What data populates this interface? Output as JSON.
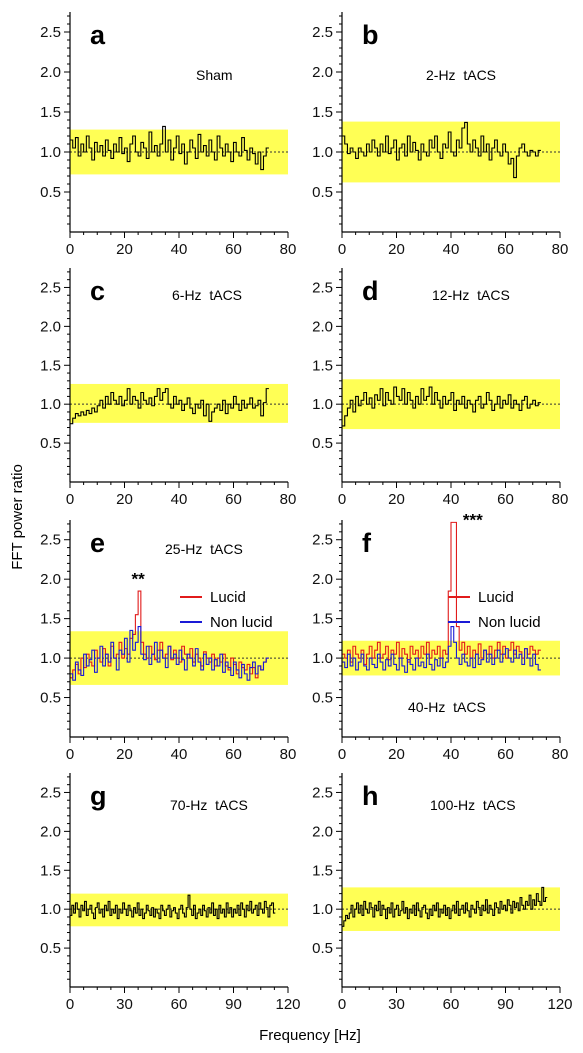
{
  "chart_data": [
    {
      "panel": "a",
      "type": "line",
      "condition_label": "Sham",
      "x_range": [
        0,
        80
      ],
      "y_range": [
        0,
        2.75
      ],
      "xticks": [
        0,
        20,
        40,
        60,
        80
      ],
      "yticks": [
        0.5,
        1.0,
        1.5,
        2.0,
        2.5
      ],
      "band": [
        0.72,
        1.28
      ],
      "series": [
        {
          "color": "#000000",
          "x_max": 73,
          "values": [
            1.15,
            1.05,
            1.18,
            0.95,
            1.1,
            1.0,
            1.2,
            1.05,
            0.9,
            1.12,
            1.0,
            1.08,
            0.95,
            1.15,
            1.02,
            0.92,
            1.1,
            1.0,
            1.18,
            0.98,
            1.05,
            0.88,
            1.1,
            1.2,
            1.0,
            0.95,
            1.12,
            1.05,
            0.92,
            1.25,
            1.0,
            1.08,
            0.95,
            1.1,
            1.32,
            1.0,
            1.15,
            0.9,
            1.05,
            1.2,
            0.98,
            1.1,
            0.85,
            1.0,
            1.15,
            1.05,
            0.92,
            1.22,
            1.0,
            1.08,
            0.95,
            1.15,
            1.0,
            0.9,
            1.2,
            1.05,
            0.95,
            1.1,
            1.0,
            0.88,
            1.12,
            1.0,
            0.95,
            1.18,
            1.02,
            0.9,
            1.05,
            0.98,
            0.85,
            1.0,
            0.78,
            0.95,
            1.05
          ]
        }
      ]
    },
    {
      "panel": "b",
      "type": "line",
      "condition_label": "2-Hz  tACS",
      "x_range": [
        0,
        80
      ],
      "y_range": [
        0,
        2.75
      ],
      "xticks": [
        0,
        20,
        40,
        60,
        80
      ],
      "yticks": [
        0.5,
        1.0,
        1.5,
        2.0,
        2.5
      ],
      "band": [
        0.62,
        1.38
      ],
      "series": [
        {
          "color": "#000000",
          "x_max": 73,
          "values": [
            1.2,
            1.1,
            0.98,
            1.05,
            1.0,
            0.92,
            1.05,
            1.0,
            0.95,
            1.1,
            1.0,
            1.15,
            1.05,
            0.95,
            1.1,
            1.0,
            1.2,
            0.98,
            1.05,
            1.15,
            0.9,
            1.05,
            1.1,
            0.95,
            1.2,
            1.0,
            1.12,
            1.02,
            0.9,
            1.1,
            1.0,
            0.95,
            1.15,
            1.05,
            1.2,
            1.0,
            0.92,
            1.1,
            1.05,
            1.25,
            1.0,
            0.95,
            1.15,
            1.05,
            1.3,
            1.37,
            1.1,
            1.0,
            1.15,
            1.05,
            0.95,
            1.2,
            1.0,
            1.1,
            0.9,
            1.05,
            1.15,
            1.0,
            0.95,
            1.1,
            1.0,
            0.85,
            0.92,
            0.68,
            0.95,
            1.05,
            1.1,
            1.0,
            0.95,
            1.02,
            1.0,
            0.95,
            1.02
          ]
        }
      ]
    },
    {
      "panel": "c",
      "type": "line",
      "condition_label": "6-Hz  tACS",
      "x_range": [
        0,
        80
      ],
      "y_range": [
        0,
        2.75
      ],
      "xticks": [
        0,
        20,
        40,
        60,
        80
      ],
      "yticks": [
        0.5,
        1.0,
        1.5,
        2.0,
        2.5
      ],
      "band": [
        0.76,
        1.26
      ],
      "series": [
        {
          "color": "#000000",
          "x_max": 73,
          "values": [
            0.75,
            0.82,
            0.88,
            0.85,
            0.9,
            0.86,
            0.92,
            0.88,
            0.95,
            0.9,
            0.98,
            1.05,
            0.95,
            1.1,
            1.0,
            1.15,
            1.05,
            1.0,
            1.1,
            0.98,
            1.05,
            1.2,
            1.0,
            1.1,
            1.05,
            0.95,
            1.15,
            1.05,
            1.0,
            1.08,
            0.98,
            1.1,
            1.2,
            1.05,
            1.15,
            1.2,
            1.0,
            0.95,
            1.1,
            1.0,
            1.05,
            0.92,
            1.0,
            1.08,
            0.95,
            0.88,
            1.0,
            0.95,
            1.05,
            0.85,
            1.0,
            0.78,
            0.9,
            0.95,
            1.0,
            0.92,
            1.05,
            0.88,
            1.0,
            0.95,
            1.1,
            1.0,
            0.92,
            1.05,
            0.95,
            1.0,
            1.08,
            0.95,
            0.98,
            1.05,
            0.85,
            1.02,
            1.2
          ]
        }
      ]
    },
    {
      "panel": "d",
      "type": "line",
      "condition_label": "12-Hz  tACS",
      "x_range": [
        0,
        80
      ],
      "y_range": [
        0,
        2.75
      ],
      "xticks": [
        0,
        20,
        40,
        60,
        80
      ],
      "yticks": [
        0.5,
        1.0,
        1.5,
        2.0,
        2.5
      ],
      "band": [
        0.68,
        1.32
      ],
      "series": [
        {
          "color": "#000000",
          "x_max": 73,
          "values": [
            0.72,
            0.85,
            0.95,
            1.05,
            0.9,
            1.1,
            0.98,
            1.05,
            1.15,
            1.0,
            1.08,
            0.95,
            1.12,
            1.05,
            1.2,
            0.98,
            1.15,
            1.05,
            1.0,
            1.22,
            1.1,
            1.05,
            1.2,
            1.0,
            1.15,
            1.05,
            0.95,
            1.1,
            1.0,
            1.2,
            1.05,
            1.1,
            1.22,
            1.0,
            1.15,
            1.05,
            0.95,
            1.1,
            1.0,
            1.05,
            1.15,
            0.92,
            1.05,
            1.0,
            1.1,
            0.95,
            1.05,
            1.0,
            0.9,
            1.05,
            1.1,
            0.95,
            1.0,
            1.15,
            1.05,
            0.92,
            1.0,
            1.1,
            0.95,
            1.05,
            1.0,
            1.12,
            0.95,
            1.05,
            1.0,
            0.92,
            1.05,
            1.1,
            0.95,
            1.0,
            1.05,
            0.98,
            1.02
          ]
        }
      ]
    },
    {
      "panel": "e",
      "type": "line",
      "condition_label": "25-Hz  tACS",
      "x_range": [
        0,
        80
      ],
      "y_range": [
        0,
        2.75
      ],
      "xticks": [
        0,
        20,
        40,
        60,
        80
      ],
      "yticks": [
        0.5,
        1.0,
        1.5,
        2.0,
        2.5
      ],
      "band": [
        0.66,
        1.34
      ],
      "legend": [
        "Lucid",
        "Non lucid"
      ],
      "annotation": {
        "text": "**",
        "x": 25,
        "y": 1.93
      },
      "series": [
        {
          "name": "Lucid",
          "color": "#e11b1b",
          "x_max": 73,
          "values": [
            0.75,
            0.85,
            0.92,
            0.8,
            1.0,
            0.88,
            1.05,
            0.95,
            0.9,
            1.1,
            1.0,
            0.95,
            1.12,
            1.05,
            0.9,
            1.15,
            1.0,
            1.05,
            1.2,
            1.0,
            1.12,
            1.05,
            1.25,
            1.3,
            1.55,
            1.85,
            1.2,
            1.05,
            1.0,
            1.15,
            1.05,
            0.98,
            1.1,
            1.2,
            1.0,
            1.05,
            1.15,
            0.98,
            1.1,
            1.0,
            0.95,
            1.15,
            1.05,
            1.0,
            1.12,
            0.95,
            1.05,
            1.0,
            0.9,
            1.08,
            1.0,
            0.95,
            1.05,
            0.9,
            1.0,
            0.95,
            1.05,
            0.9,
            0.85,
            1.0,
            0.92,
            0.8,
            0.95,
            0.88,
            0.85,
            0.92,
            0.8,
            0.88,
            0.75,
            0.9,
            0.85,
            0.95,
            1.0
          ]
        },
        {
          "name": "Non lucid",
          "color": "#1a1ad6",
          "x_max": 73,
          "values": [
            0.8,
            0.72,
            0.95,
            0.85,
            0.78,
            1.05,
            0.9,
            0.98,
            1.1,
            0.82,
            1.0,
            1.15,
            0.9,
            1.05,
            0.95,
            1.2,
            1.0,
            0.85,
            1.1,
            1.05,
            1.25,
            0.95,
            1.35,
            1.1,
            1.2,
            1.4,
            1.05,
            0.98,
            1.15,
            0.92,
            1.05,
            1.2,
            0.95,
            1.1,
            1.0,
            0.88,
            1.15,
            1.0,
            1.05,
            0.92,
            1.1,
            0.98,
            0.85,
            1.05,
            1.0,
            0.9,
            1.12,
            0.95,
            0.85,
            1.05,
            0.92,
            1.0,
            0.85,
            0.98,
            0.9,
            1.05,
            0.82,
            0.95,
            0.88,
            0.78,
            0.95,
            0.85,
            0.75,
            0.92,
            0.8,
            0.72,
            0.88,
            0.95,
            0.8,
            0.9,
            0.85,
            0.95,
            1.0
          ]
        }
      ]
    },
    {
      "panel": "f",
      "type": "line",
      "condition_label": "40-Hz  tACS",
      "x_range": [
        0,
        80
      ],
      "y_range": [
        0,
        2.75
      ],
      "xticks": [
        0,
        20,
        40,
        60,
        80
      ],
      "yticks": [
        0.5,
        1.0,
        1.5,
        2.0,
        2.5
      ],
      "band": [
        0.78,
        1.22
      ],
      "legend": [
        "Lucid",
        "Non lucid"
      ],
      "annotation": {
        "text": "***",
        "x": 48,
        "y": 2.68
      },
      "series": [
        {
          "name": "Lucid",
          "color": "#e11b1b",
          "x_max": 73,
          "values": [
            1.05,
            1.0,
            1.1,
            0.95,
            1.15,
            1.05,
            1.0,
            1.1,
            0.92,
            1.05,
            1.15,
            1.0,
            1.1,
            1.2,
            1.0,
            1.05,
            1.15,
            0.98,
            1.1,
            1.05,
            1.2,
            1.0,
            1.12,
            1.05,
            0.95,
            1.15,
            1.05,
            1.1,
            1.0,
            1.15,
            1.05,
            1.2,
            1.0,
            1.1,
            1.05,
            1.15,
            1.0,
            1.1,
            1.05,
            1.85,
            2.72,
            2.72,
            1.4,
            1.1,
            1.2,
            1.05,
            1.15,
            1.0,
            1.1,
            1.05,
            1.18,
            1.0,
            1.1,
            1.05,
            1.15,
            1.0,
            1.1,
            1.2,
            1.05,
            1.15,
            1.0,
            1.1,
            1.2,
            1.05,
            1.15,
            1.08,
            1.0,
            1.12,
            1.05,
            1.15,
            1.1,
            1.05,
            1.1
          ]
        },
        {
          "name": "Non lucid",
          "color": "#1a1ad6",
          "x_max": 73,
          "values": [
            0.95,
            0.88,
            1.05,
            0.9,
            1.0,
            0.85,
            0.95,
            1.05,
            0.9,
            0.85,
            1.0,
            0.92,
            0.88,
            1.05,
            0.95,
            0.85,
            0.98,
            0.9,
            1.05,
            0.92,
            0.85,
            1.0,
            0.9,
            0.82,
            0.98,
            0.92,
            0.85,
            1.0,
            0.9,
            0.95,
            0.88,
            1.05,
            0.92,
            0.85,
            0.98,
            0.9,
            1.0,
            0.88,
            0.95,
            1.15,
            1.4,
            1.2,
            1.0,
            0.92,
            1.05,
            0.95,
            0.9,
            1.0,
            0.88,
            1.05,
            0.92,
            0.98,
            1.1,
            0.95,
            1.05,
            0.92,
            1.0,
            1.1,
            0.95,
            1.05,
            1.12,
            1.0,
            0.95,
            1.1,
            1.0,
            1.05,
            0.92,
            1.12,
            1.0,
            0.9,
            1.05,
            0.92,
            0.85
          ]
        }
      ]
    },
    {
      "panel": "g",
      "type": "line",
      "condition_label": "70-Hz  tACS",
      "x_range": [
        0,
        120
      ],
      "y_range": [
        0,
        2.75
      ],
      "xticks": [
        0,
        30,
        60,
        90,
        120
      ],
      "yticks": [
        0.5,
        1.0,
        1.5,
        2.0,
        2.5
      ],
      "band": [
        0.78,
        1.2
      ],
      "series": [
        {
          "color": "#000000",
          "x_max": 113,
          "values": [
            0.92,
            1.05,
            0.95,
            1.08,
            1.0,
            0.9,
            1.05,
            0.98,
            1.1,
            0.92,
            1.0,
            1.05,
            0.95,
            0.88,
            1.02,
            1.08,
            0.95,
            1.0,
            0.9,
            1.05,
            0.98,
            1.1,
            0.92,
            1.0,
            0.95,
            1.05,
            0.88,
            1.0,
            0.95,
            1.08,
            1.0,
            0.92,
            1.05,
            0.98,
            0.9,
            1.02,
            0.95,
            1.08,
            0.92,
            1.0,
            0.88,
            0.95,
            1.05,
            0.98,
            0.92,
            1.02,
            0.9,
            1.0,
            0.95,
            0.88,
            1.05,
            0.98,
            0.92,
            1.0,
            1.05,
            0.9,
            0.98,
            1.02,
            0.95,
            0.88,
            1.0,
            1.05,
            0.95,
            0.9,
            1.02,
            1.18,
            1.0,
            0.92,
            1.05,
            0.88,
            0.95,
            1.0,
            0.92,
            1.05,
            0.98,
            0.9,
            1.02,
            0.95,
            1.08,
            0.92,
            1.0,
            0.88,
            1.05,
            0.95,
            1.0,
            0.9,
            1.08,
            0.95,
            1.02,
            0.9,
            1.0,
            0.95,
            1.05,
            0.92,
            1.08,
            1.0,
            0.9,
            1.05,
            0.98,
            1.1,
            0.95,
            1.0,
            1.05,
            0.92,
            1.08,
            1.0,
            0.95,
            1.1,
            1.02,
            0.9,
            1.05,
            1.08,
            0.95
          ]
        }
      ]
    },
    {
      "panel": "h",
      "type": "line",
      "condition_label": "100-Hz  tACS",
      "x_range": [
        0,
        120
      ],
      "y_range": [
        0,
        2.75
      ],
      "xticks": [
        0,
        30,
        60,
        90,
        120
      ],
      "yticks": [
        0.5,
        1.0,
        1.5,
        2.0,
        2.5
      ],
      "band": [
        0.72,
        1.28
      ],
      "series": [
        {
          "color": "#000000",
          "x_max": 113,
          "values": [
            0.78,
            0.85,
            0.92,
            0.88,
            0.95,
            1.05,
            0.9,
            1.0,
            1.08,
            0.95,
            1.05,
            0.92,
            1.1,
            1.0,
            0.95,
            1.08,
            1.02,
            0.9,
            1.05,
            0.98,
            1.1,
            0.92,
            1.05,
            1.0,
            0.88,
            1.02,
            0.95,
            1.08,
            0.9,
            1.0,
            1.05,
            0.92,
            0.98,
            1.1,
            0.95,
            1.02,
            0.88,
            1.0,
            0.95,
            1.05,
            0.92,
            1.08,
            0.98,
            0.9,
            1.02,
            1.05,
            0.95,
            0.88,
            1.0,
            0.92,
            1.05,
            0.98,
            1.08,
            0.9,
            1.0,
            0.95,
            1.05,
            0.92,
            1.02,
            0.88,
            0.98,
            1.05,
            0.95,
            1.1,
            0.92,
            1.0,
            1.05,
            0.95,
            1.08,
            0.98,
            0.9,
            1.05,
            1.0,
            0.95,
            1.1,
            1.02,
            0.92,
            1.05,
            0.98,
            1.12,
            0.95,
            1.05,
            1.0,
            0.92,
            1.08,
            1.02,
            0.95,
            1.1,
            1.0,
            1.05,
            0.98,
            1.12,
            1.05,
            0.95,
            1.1,
            1.02,
            1.08,
            0.98,
            1.15,
            1.05,
            1.0,
            1.1,
            1.05,
            1.18,
            1.0,
            1.12,
            1.05,
            1.2,
            1.1,
            1.05,
            1.28,
            1.1,
            1.15
          ]
        }
      ]
    }
  ],
  "axes": {
    "ylabel": "FFT power ratio",
    "xlabel": "Frequency [Hz]"
  }
}
